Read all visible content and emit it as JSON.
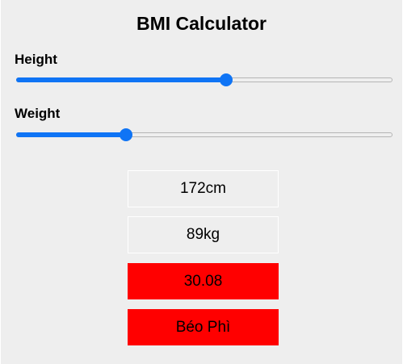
{
  "app": {
    "title": "BMI Calculator"
  },
  "height": {
    "label": "Height",
    "value": "172cm",
    "slider_fraction": 0.56
  },
  "weight": {
    "label": "Weight",
    "value": "89kg",
    "slider_fraction": 0.285
  },
  "result": {
    "bmi": "30.08",
    "status": "Béo Phì",
    "alert_color": "#ff0000"
  },
  "colors": {
    "accent": "#0f74f5",
    "background": "#eeeeee"
  }
}
